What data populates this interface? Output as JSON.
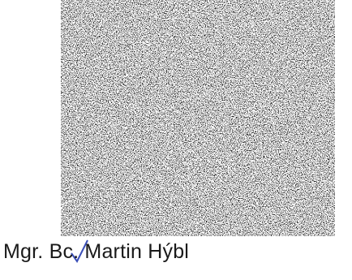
{
  "signature_block": {
    "name": "Mgr. Bc. Martin Hýbl"
  }
}
